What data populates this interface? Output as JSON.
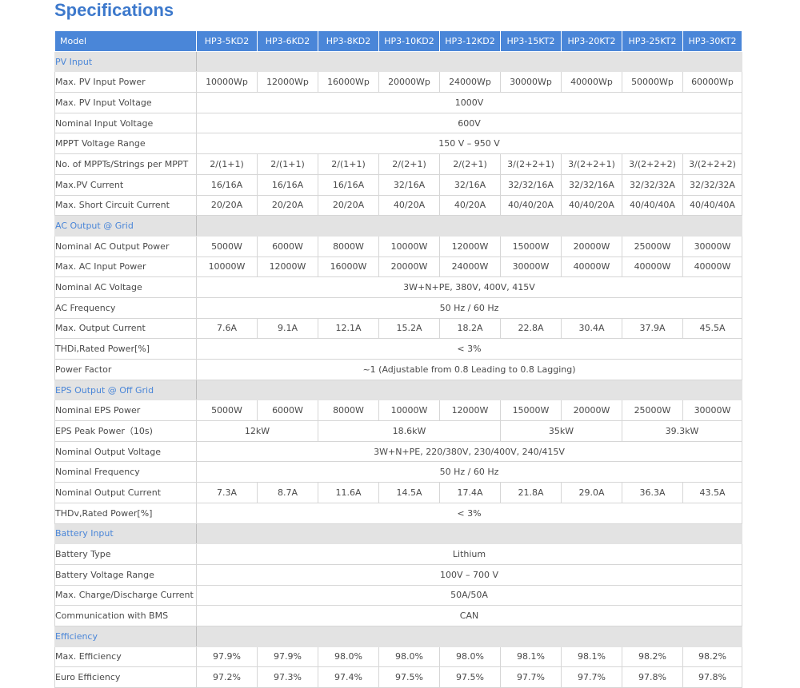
{
  "title": "Specifications",
  "header": {
    "label": "Model",
    "models": [
      "HP3-5KD2",
      "HP3-6KD2",
      "HP3-8KD2",
      "HP3-10KD2",
      "HP3-12KD2",
      "HP3-15KT2",
      "HP3-20KT2",
      "HP3-25KT2",
      "HP3-30KT2"
    ]
  },
  "rows": [
    {
      "type": "section",
      "label": "PV Input"
    },
    {
      "type": "row",
      "label": "Max. PV Input Power",
      "cells": [
        {
          "text": "10000Wp",
          "span": 1
        },
        {
          "text": "12000Wp",
          "span": 1
        },
        {
          "text": "16000Wp",
          "span": 1
        },
        {
          "text": "20000Wp",
          "span": 1
        },
        {
          "text": "24000Wp",
          "span": 1
        },
        {
          "text": "30000Wp",
          "span": 1
        },
        {
          "text": "40000Wp",
          "span": 1
        },
        {
          "text": "50000Wp",
          "span": 1
        },
        {
          "text": "60000Wp",
          "span": 1
        }
      ]
    },
    {
      "type": "row",
      "label": "Max. PV Input Voltage",
      "cells": [
        {
          "text": "1000V",
          "span": 9
        }
      ]
    },
    {
      "type": "row",
      "label": "Nominal Input Voltage",
      "cells": [
        {
          "text": "600V",
          "span": 9
        }
      ]
    },
    {
      "type": "row",
      "label": "MPPT Voltage Range",
      "cells": [
        {
          "text": "150 V – 950 V",
          "span": 9
        }
      ]
    },
    {
      "type": "row",
      "label": "No. of MPPTs/Strings per MPPT",
      "cells": [
        {
          "text": "2/(1+1)",
          "span": 1
        },
        {
          "text": "2/(1+1)",
          "span": 1
        },
        {
          "text": "2/(1+1)",
          "span": 1
        },
        {
          "text": "2/(2+1)",
          "span": 1
        },
        {
          "text": "2/(2+1)",
          "span": 1
        },
        {
          "text": "3/(2+2+1)",
          "span": 1
        },
        {
          "text": "3/(2+2+1)",
          "span": 1
        },
        {
          "text": "3/(2+2+2)",
          "span": 1
        },
        {
          "text": "3/(2+2+2)",
          "span": 1
        }
      ]
    },
    {
      "type": "row",
      "label": "Max.PV Current",
      "cells": [
        {
          "text": "16/16A",
          "span": 1
        },
        {
          "text": "16/16A",
          "span": 1
        },
        {
          "text": "16/16A",
          "span": 1
        },
        {
          "text": "32/16A",
          "span": 1
        },
        {
          "text": "32/16A",
          "span": 1
        },
        {
          "text": "32/32/16A",
          "span": 1
        },
        {
          "text": "32/32/16A",
          "span": 1
        },
        {
          "text": "32/32/32A",
          "span": 1
        },
        {
          "text": "32/32/32A",
          "span": 1
        }
      ]
    },
    {
      "type": "row",
      "label": "Max. Short Circuit Current",
      "cells": [
        {
          "text": "20/20A",
          "span": 1
        },
        {
          "text": "20/20A",
          "span": 1
        },
        {
          "text": "20/20A",
          "span": 1
        },
        {
          "text": "40/20A",
          "span": 1
        },
        {
          "text": "40/20A",
          "span": 1
        },
        {
          "text": "40/40/20A",
          "span": 1
        },
        {
          "text": "40/40/20A",
          "span": 1
        },
        {
          "text": "40/40/40A",
          "span": 1
        },
        {
          "text": "40/40/40A",
          "span": 1
        }
      ]
    },
    {
      "type": "section",
      "label": "AC Output @ Grid"
    },
    {
      "type": "row",
      "label": "Nominal AC Output Power",
      "cells": [
        {
          "text": "5000W",
          "span": 1
        },
        {
          "text": "6000W",
          "span": 1
        },
        {
          "text": "8000W",
          "span": 1
        },
        {
          "text": "10000W",
          "span": 1
        },
        {
          "text": "12000W",
          "span": 1
        },
        {
          "text": "15000W",
          "span": 1
        },
        {
          "text": "20000W",
          "span": 1
        },
        {
          "text": "25000W",
          "span": 1
        },
        {
          "text": "30000W",
          "span": 1
        }
      ]
    },
    {
      "type": "row",
      "label": "Max. AC Input Power",
      "cells": [
        {
          "text": "10000W",
          "span": 1
        },
        {
          "text": "12000W",
          "span": 1
        },
        {
          "text": "16000W",
          "span": 1
        },
        {
          "text": "20000W",
          "span": 1
        },
        {
          "text": "24000W",
          "span": 1
        },
        {
          "text": "30000W",
          "span": 1
        },
        {
          "text": "40000W",
          "span": 1
        },
        {
          "text": "40000W",
          "span": 1
        },
        {
          "text": "40000W",
          "span": 1
        }
      ]
    },
    {
      "type": "row",
      "label": "Nominal AC Voltage",
      "cells": [
        {
          "text": "3W+N+PE, 380V, 400V, 415V",
          "span": 9
        }
      ]
    },
    {
      "type": "row",
      "label": "AC Frequency",
      "cells": [
        {
          "text": "50 Hz / 60 Hz",
          "span": 9
        }
      ]
    },
    {
      "type": "row",
      "label": "Max. Output Current",
      "cells": [
        {
          "text": "7.6A",
          "span": 1
        },
        {
          "text": "9.1A",
          "span": 1
        },
        {
          "text": "12.1A",
          "span": 1
        },
        {
          "text": "15.2A",
          "span": 1
        },
        {
          "text": "18.2A",
          "span": 1
        },
        {
          "text": "22.8A",
          "span": 1
        },
        {
          "text": "30.4A",
          "span": 1
        },
        {
          "text": "37.9A",
          "span": 1
        },
        {
          "text": "45.5A",
          "span": 1
        }
      ]
    },
    {
      "type": "row",
      "label": "THDi,Rated Power[%]",
      "cells": [
        {
          "text": "< 3%",
          "span": 9
        }
      ]
    },
    {
      "type": "row",
      "label": "Power Factor",
      "cells": [
        {
          "text": "~1 (Adjustable from 0.8 Leading to 0.8 Lagging)",
          "span": 9
        }
      ]
    },
    {
      "type": "section",
      "label": "EPS Output @ Off Grid"
    },
    {
      "type": "row",
      "label": "Nominal EPS Power",
      "cells": [
        {
          "text": "5000W",
          "span": 1
        },
        {
          "text": "6000W",
          "span": 1
        },
        {
          "text": "8000W",
          "span": 1
        },
        {
          "text": "10000W",
          "span": 1
        },
        {
          "text": "12000W",
          "span": 1
        },
        {
          "text": "15000W",
          "span": 1
        },
        {
          "text": "20000W",
          "span": 1
        },
        {
          "text": "25000W",
          "span": 1
        },
        {
          "text": "30000W",
          "span": 1
        }
      ]
    },
    {
      "type": "row",
      "label": "EPS Peak Power（10s)",
      "cells": [
        {
          "text": "12kW",
          "span": 2
        },
        {
          "text": "18.6kW",
          "span": 3
        },
        {
          "text": "35kW",
          "span": 2
        },
        {
          "text": "39.3kW",
          "span": 2
        }
      ]
    },
    {
      "type": "row",
      "label": "Nominal Output Voltage",
      "cells": [
        {
          "text": "3W+N+PE, 220/380V, 230/400V, 240/415V",
          "span": 9
        }
      ]
    },
    {
      "type": "row",
      "label": "Nominal Frequency",
      "cells": [
        {
          "text": "50 Hz / 60 Hz",
          "span": 9
        }
      ]
    },
    {
      "type": "row",
      "label": "Nominal Output Current",
      "cells": [
        {
          "text": "7.3A",
          "span": 1
        },
        {
          "text": "8.7A",
          "span": 1
        },
        {
          "text": "11.6A",
          "span": 1
        },
        {
          "text": "14.5A",
          "span": 1
        },
        {
          "text": "17.4A",
          "span": 1
        },
        {
          "text": "21.8A",
          "span": 1
        },
        {
          "text": "29.0A",
          "span": 1
        },
        {
          "text": "36.3A",
          "span": 1
        },
        {
          "text": "43.5A",
          "span": 1
        }
      ]
    },
    {
      "type": "row",
      "label": "THDv,Rated Power[%]",
      "cells": [
        {
          "text": "< 3%",
          "span": 9
        }
      ]
    },
    {
      "type": "section",
      "label": "Battery Input"
    },
    {
      "type": "row",
      "label": "Battery Type",
      "cells": [
        {
          "text": "Lithium",
          "span": 9
        }
      ]
    },
    {
      "type": "row",
      "label": "Battery Voltage Range",
      "cells": [
        {
          "text": "100V – 700 V",
          "span": 9
        }
      ]
    },
    {
      "type": "row",
      "label": "Max. Charge/Discharge Current",
      "cells": [
        {
          "text": "50A/50A",
          "span": 9
        }
      ]
    },
    {
      "type": "row",
      "label": "Communication with BMS",
      "cells": [
        {
          "text": "CAN",
          "span": 9
        }
      ]
    },
    {
      "type": "section",
      "label": "Efficiency"
    },
    {
      "type": "row",
      "label": "Max. Efficiency",
      "cells": [
        {
          "text": "97.9%",
          "span": 1
        },
        {
          "text": "97.9%",
          "span": 1
        },
        {
          "text": "98.0%",
          "span": 1
        },
        {
          "text": "98.0%",
          "span": 1
        },
        {
          "text": "98.0%",
          "span": 1
        },
        {
          "text": "98.1%",
          "span": 1
        },
        {
          "text": "98.1%",
          "span": 1
        },
        {
          "text": "98.2%",
          "span": 1
        },
        {
          "text": "98.2%",
          "span": 1
        }
      ]
    },
    {
      "type": "row",
      "label": "Euro Efficiency",
      "cells": [
        {
          "text": "97.2%",
          "span": 1
        },
        {
          "text": "97.3%",
          "span": 1
        },
        {
          "text": "97.4%",
          "span": 1
        },
        {
          "text": "97.5%",
          "span": 1
        },
        {
          "text": "97.5%",
          "span": 1
        },
        {
          "text": "97.7%",
          "span": 1
        },
        {
          "text": "97.7%",
          "span": 1
        },
        {
          "text": "97.8%",
          "span": 1
        },
        {
          "text": "97.8%",
          "span": 1
        }
      ]
    }
  ]
}
